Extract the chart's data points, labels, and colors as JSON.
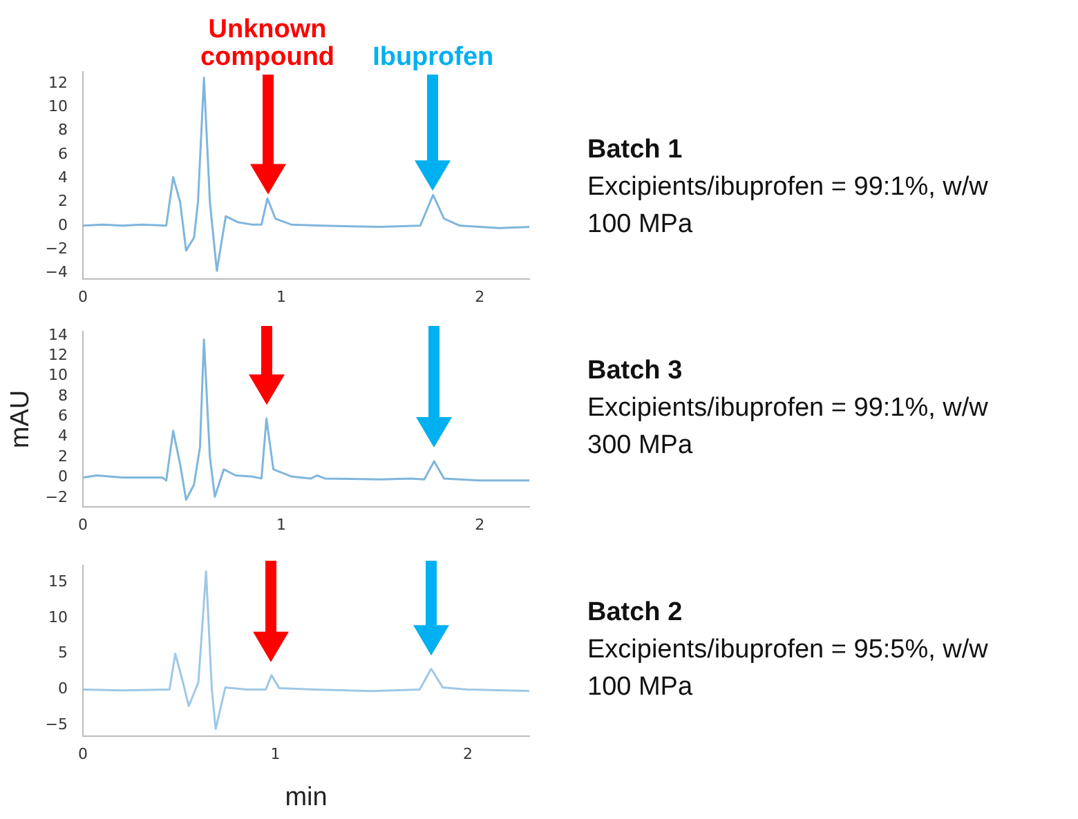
{
  "chart_data": [
    {
      "type": "line",
      "annotations": [
        "Unknown compound",
        "Ibuprofen",
        "Batch 1",
        "Excipients/ibuprofen = 99:1%, w/w",
        "100 MPa"
      ],
      "grid": false,
      "marker": "none",
      "legend": false,
      "color": "#7fb6dc",
      "x": [
        0,
        0.1,
        0.2,
        0.3,
        0.42,
        0.455,
        0.49,
        0.52,
        0.56,
        0.58,
        0.61,
        0.64,
        0.675,
        0.72,
        0.78,
        0.85,
        0.9,
        0.93,
        0.97,
        1.05,
        1.2,
        1.5,
        1.7,
        1.765,
        1.82,
        1.9,
        2.0,
        2.1,
        2.25
      ],
      "values": [
        0,
        0.1,
        0,
        0.1,
        0,
        4.1,
        2,
        -2.1,
        -1,
        2,
        12.5,
        2,
        -3.8,
        0.8,
        0.3,
        0.1,
        0.1,
        2.3,
        0.6,
        0.1,
        0,
        -0.1,
        0,
        2.6,
        0.6,
        0,
        -0.1,
        -0.2,
        -0.1
      ],
      "xlim": [
        0,
        2.25
      ],
      "xticks": [
        0,
        1,
        2
      ],
      "ylim": [
        -4.5,
        13
      ],
      "yticks": [
        -4,
        -2,
        0,
        2,
        4,
        6,
        8,
        10,
        12
      ]
    },
    {
      "type": "line",
      "annotations": [
        "Batch 3",
        "Excipients/ibuprofen = 99:1%, w/w",
        "300 MPa"
      ],
      "ylabel": "mAU",
      "grid": false,
      "marker": "none",
      "legend": false,
      "color": "#7fb6dc",
      "x": [
        0,
        0.07,
        0.2,
        0.4,
        0.42,
        0.455,
        0.49,
        0.52,
        0.56,
        0.59,
        0.61,
        0.64,
        0.665,
        0.71,
        0.77,
        0.85,
        0.9,
        0.925,
        0.96,
        1.05,
        1.15,
        1.18,
        1.22,
        1.5,
        1.65,
        1.72,
        1.77,
        1.82,
        2.0,
        2.25
      ],
      "values": [
        0,
        0.2,
        0,
        0,
        -0.3,
        4.6,
        1.3,
        -2.2,
        -0.7,
        3,
        13.6,
        2,
        -1.9,
        0.8,
        0.2,
        0.1,
        -0.1,
        5.8,
        0.8,
        0.1,
        -0.1,
        0.2,
        -0.1,
        -0.2,
        -0.1,
        -0.2,
        1.6,
        -0.1,
        -0.3,
        -0.3
      ],
      "xlim": [
        0,
        2.25
      ],
      "xticks": [
        0,
        1,
        2
      ],
      "ylim": [
        -2.9,
        14.4
      ],
      "yticks": [
        -2,
        0,
        2,
        4,
        6,
        8,
        10,
        12,
        14
      ]
    },
    {
      "type": "line",
      "annotations": [
        "Batch 2",
        "Excipients/ibuprofen = 95:5%, w/w",
        "100 MPa"
      ],
      "xlabel": "min",
      "grid": false,
      "marker": "none",
      "legend": false,
      "color": "#9ec8e6",
      "x": [
        0,
        0.2,
        0.45,
        0.48,
        0.52,
        0.55,
        0.6,
        0.64,
        0.67,
        0.69,
        0.74,
        0.85,
        0.95,
        0.98,
        1.02,
        1.2,
        1.5,
        1.75,
        1.81,
        1.87,
        2.0,
        2.32
      ],
      "values": [
        0,
        -0.1,
        0,
        5,
        1,
        -2.3,
        1,
        16.5,
        0,
        -5.5,
        0.3,
        0,
        0,
        2,
        0.2,
        0,
        -0.2,
        0,
        2.9,
        0.3,
        0,
        -0.2
      ],
      "xlim": [
        0,
        2.32
      ],
      "xticks": [
        0,
        1,
        2
      ],
      "ylim": [
        -6.5,
        17.3
      ],
      "yticks": [
        -5,
        0,
        5,
        10,
        15
      ]
    }
  ]
}
